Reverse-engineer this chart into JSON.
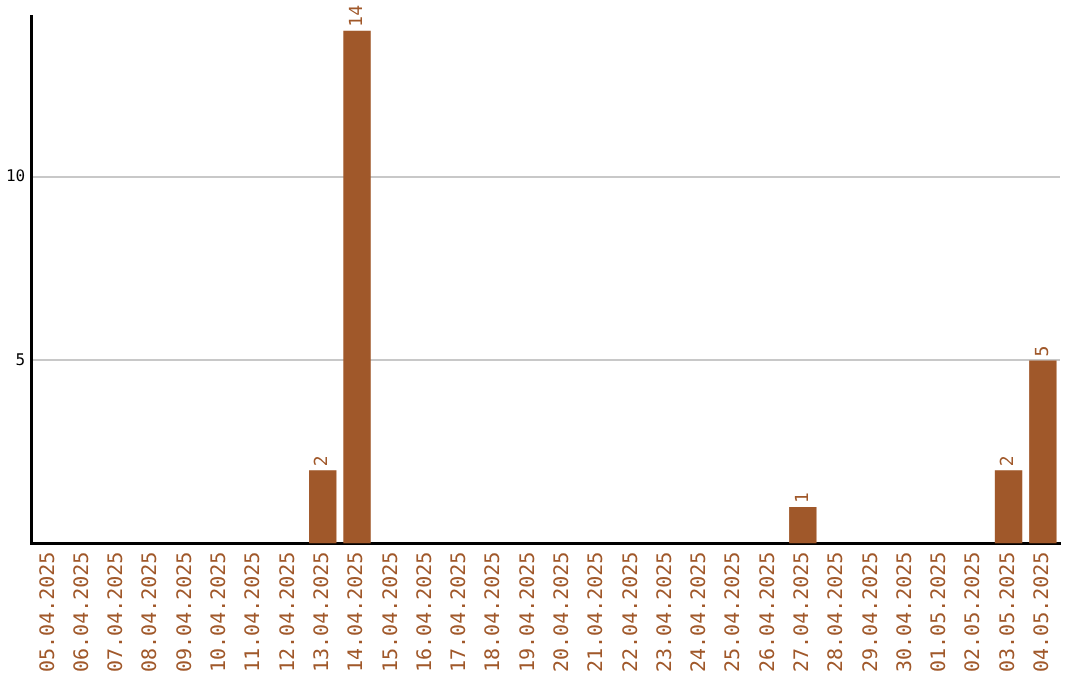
{
  "chart_data": {
    "type": "bar",
    "categories": [
      "05.04.2025",
      "06.04.2025",
      "07.04.2025",
      "08.04.2025",
      "09.04.2025",
      "10.04.2025",
      "11.04.2025",
      "12.04.2025",
      "13.04.2025",
      "14.04.2025",
      "15.04.2025",
      "16.04.2025",
      "17.04.2025",
      "18.04.2025",
      "19.04.2025",
      "20.04.2025",
      "21.04.2025",
      "22.04.2025",
      "23.04.2025",
      "24.04.2025",
      "25.04.2025",
      "26.04.2025",
      "27.04.2025",
      "28.04.2025",
      "29.04.2025",
      "30.04.2025",
      "01.05.2025",
      "02.05.2025",
      "03.05.2025",
      "04.05.2025"
    ],
    "values": [
      0,
      0,
      0,
      0,
      0,
      0,
      0,
      0,
      2,
      14,
      0,
      0,
      0,
      0,
      0,
      0,
      0,
      0,
      0,
      0,
      0,
      0,
      1,
      0,
      0,
      0,
      0,
      0,
      2,
      5
    ],
    "value_labels": [
      null,
      null,
      null,
      null,
      null,
      null,
      null,
      null,
      "2",
      "14",
      null,
      null,
      null,
      null,
      null,
      null,
      null,
      null,
      null,
      null,
      null,
      null,
      "1",
      null,
      null,
      null,
      null,
      null,
      "2",
      "5"
    ],
    "color": "#a0582a",
    "ylim": [
      0,
      14.4
    ],
    "yticks": [
      5,
      10
    ],
    "grid": "y",
    "legend": false
  }
}
